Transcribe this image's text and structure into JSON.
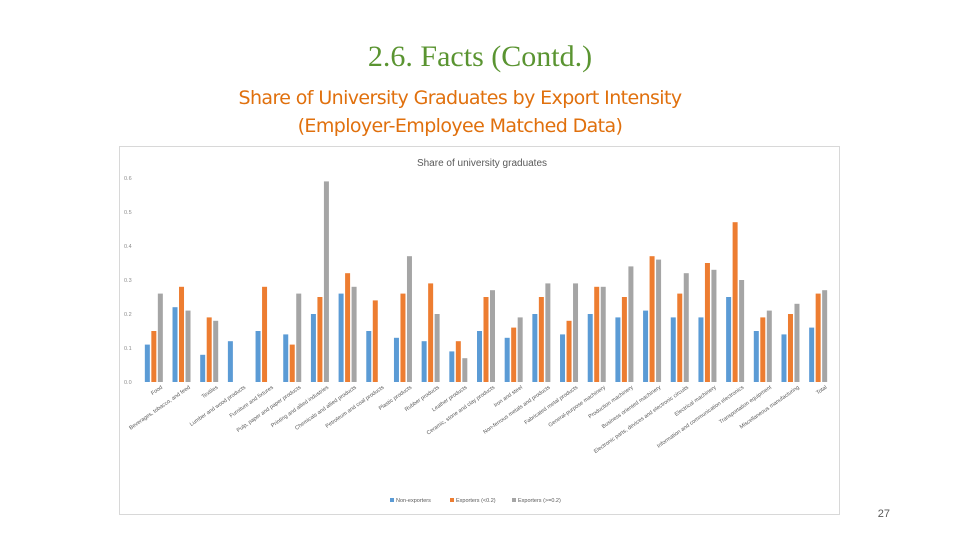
{
  "slide": {
    "title": "2.6. Facts (Contd.)",
    "subtitle_line1": "Share of University Graduates by Export Intensity",
    "subtitle_line2": "(Employer-Employee Matched Data)",
    "page_number": "27"
  },
  "colors": {
    "title": "#5a9431",
    "subtitle": "#e0700d",
    "series": [
      "#5b9bd5",
      "#ed7d31",
      "#a5a5a5"
    ]
  },
  "chart_data": {
    "type": "bar",
    "title": "Share of university graduates",
    "xlabel": "",
    "ylabel": "",
    "ylim": [
      0,
      0.6
    ],
    "yticks": [
      "0.0",
      "0.1",
      "0.2",
      "0.3",
      "0.4",
      "0.5",
      "0.6"
    ],
    "grid": false,
    "legend_position": "bottom",
    "categories": [
      "Food",
      "Beverages, tobacco, and feed",
      "Textiles",
      "Lumber and wood products",
      "Furniture and fixtures",
      "Pulp, paper and paper products",
      "Printing and allied industries",
      "Chemicals and allied products",
      "Petroleum and coal products",
      "Plastic products",
      "Rubber products",
      "Leather products",
      "Ceramic, stone and clay products",
      "Iron and steel",
      "Non-ferrous metals and products",
      "Fabricated metal products",
      "General-purpose machinery",
      "Production machinery",
      "Business oriented machinery",
      "Electronic parts, devices and electronic circuits",
      "Electrical machinery",
      "Information and communication electronics",
      "Transportation equipment",
      "Miscellaneous manufacturing",
      "Total"
    ],
    "series": [
      {
        "name": "Non-exporters",
        "values": [
          0.11,
          0.22,
          0.08,
          0.12,
          0.15,
          0.14,
          0.2,
          0.26,
          0.15,
          0.13,
          0.12,
          0.09,
          0.15,
          0.13,
          0.2,
          0.14,
          0.2,
          0.19,
          0.21,
          0.19,
          0.19,
          0.25,
          0.15,
          0.14,
          0.16
        ]
      },
      {
        "name": "Exporters (<0.2)",
        "values": [
          0.15,
          0.28,
          0.19,
          null,
          0.28,
          0.11,
          0.25,
          0.32,
          0.24,
          0.26,
          0.29,
          0.12,
          0.25,
          0.16,
          0.25,
          0.18,
          0.28,
          0.25,
          0.37,
          0.26,
          0.35,
          0.47,
          0.19,
          0.2,
          0.26
        ]
      },
      {
        "name": "Exporters (>=0.2)",
        "values": [
          0.26,
          0.21,
          0.18,
          null,
          null,
          0.26,
          0.59,
          0.28,
          null,
          0.37,
          0.2,
          0.07,
          0.27,
          0.19,
          0.29,
          0.29,
          0.28,
          0.34,
          0.36,
          0.32,
          0.33,
          0.3,
          0.21,
          0.23,
          0.27
        ]
      }
    ]
  }
}
